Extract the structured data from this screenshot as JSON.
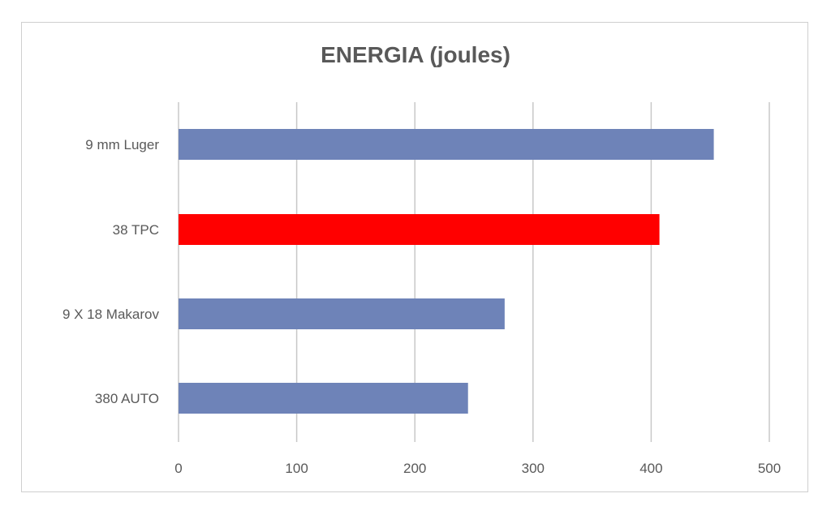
{
  "chart_data": {
    "type": "bar",
    "orientation": "horizontal",
    "title": "ENERGIA (joules)",
    "xlabel": "",
    "ylabel": "",
    "categories": [
      "9 mm Luger",
      "38 TPC",
      "9 X 18 Makarov",
      "380 AUTO"
    ],
    "values": [
      453,
      407,
      276,
      245
    ],
    "bar_colors": [
      "#6e83b8",
      "#ff0000",
      "#6e83b8",
      "#6e83b8"
    ],
    "xlim": [
      0,
      500
    ],
    "x_ticks": [
      0,
      100,
      200,
      300,
      400,
      500
    ],
    "grid": "vertical",
    "legend": "none"
  }
}
